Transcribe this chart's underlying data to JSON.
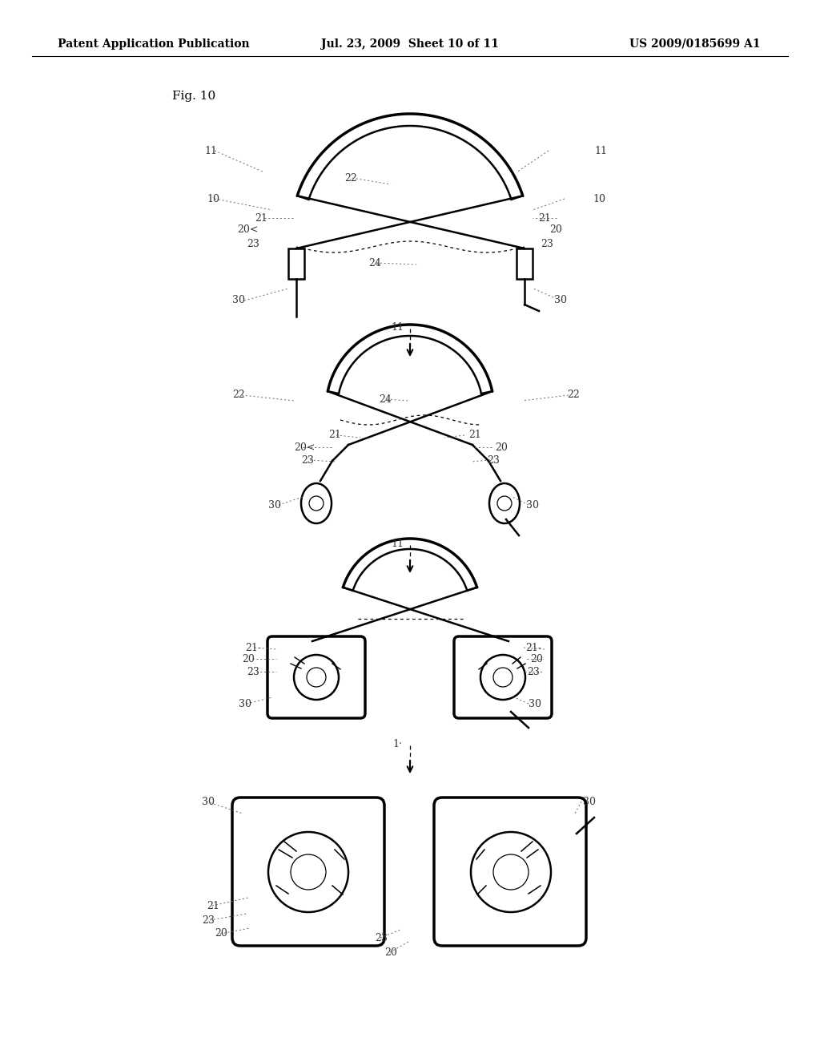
{
  "header_left": "Patent Application Publication",
  "header_center": "Jul. 23, 2009  Sheet 10 of 11",
  "header_right": "US 2009/0185699 A1",
  "background_color": "#ffffff",
  "line_color": "#000000",
  "label_color": "#333333",
  "fig_label": "Fig. 10"
}
